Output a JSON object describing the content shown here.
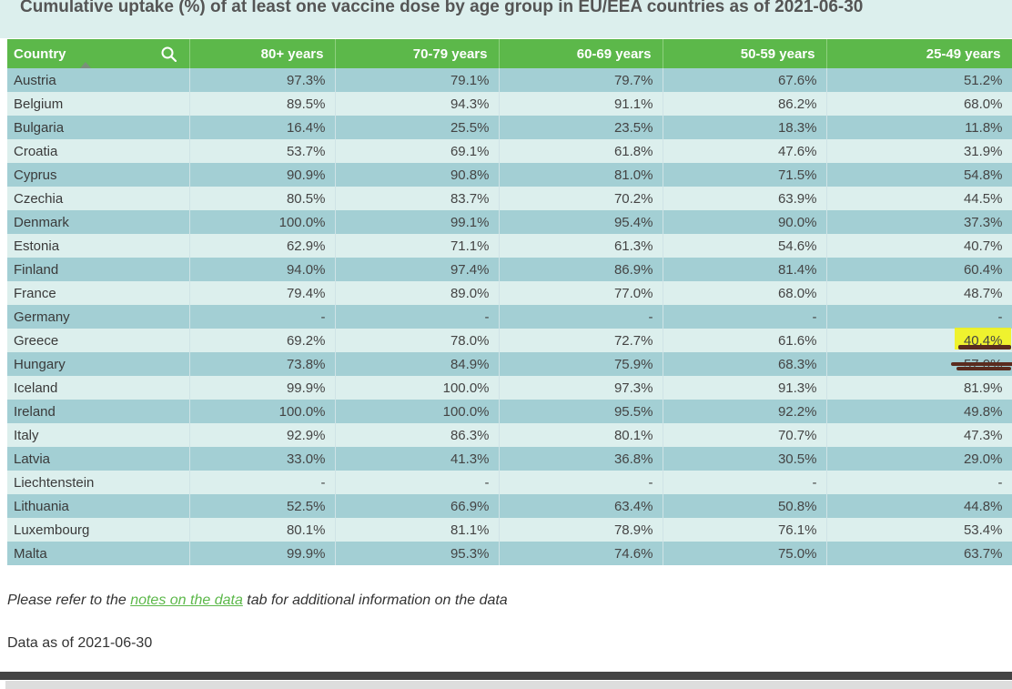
{
  "title": "Cumulative uptake (%) of at least one vaccine dose by age group in EU/EEA countries as of 2021-06-30",
  "columns": [
    "Country",
    "80+ years",
    "70-79 years",
    "60-69 years",
    "50-59 years",
    "25-49 years"
  ],
  "rows": [
    [
      "Austria",
      "97.3%",
      "79.1%",
      "79.7%",
      "67.6%",
      "51.2%"
    ],
    [
      "Belgium",
      "89.5%",
      "94.3%",
      "91.1%",
      "86.2%",
      "68.0%"
    ],
    [
      "Bulgaria",
      "16.4%",
      "25.5%",
      "23.5%",
      "18.3%",
      "11.8%"
    ],
    [
      "Croatia",
      "53.7%",
      "69.1%",
      "61.8%",
      "47.6%",
      "31.9%"
    ],
    [
      "Cyprus",
      "90.9%",
      "90.8%",
      "81.0%",
      "71.5%",
      "54.8%"
    ],
    [
      "Czechia",
      "80.5%",
      "83.7%",
      "70.2%",
      "63.9%",
      "44.5%"
    ],
    [
      "Denmark",
      "100.0%",
      "99.1%",
      "95.4%",
      "90.0%",
      "37.3%"
    ],
    [
      "Estonia",
      "62.9%",
      "71.1%",
      "61.3%",
      "54.6%",
      "40.7%"
    ],
    [
      "Finland",
      "94.0%",
      "97.4%",
      "86.9%",
      "81.4%",
      "60.4%"
    ],
    [
      "France",
      "79.4%",
      "89.0%",
      "77.0%",
      "68.0%",
      "48.7%"
    ],
    [
      "Germany",
      "-",
      "-",
      "-",
      "-",
      "-"
    ],
    [
      "Greece",
      "69.2%",
      "78.0%",
      "72.7%",
      "61.6%",
      "40.4%"
    ],
    [
      "Hungary",
      "73.8%",
      "84.9%",
      "75.9%",
      "68.3%",
      "57.0%"
    ],
    [
      "Iceland",
      "99.9%",
      "100.0%",
      "97.3%",
      "91.3%",
      "81.9%"
    ],
    [
      "Ireland",
      "100.0%",
      "100.0%",
      "95.5%",
      "92.2%",
      "49.8%"
    ],
    [
      "Italy",
      "92.9%",
      "86.3%",
      "80.1%",
      "70.7%",
      "47.3%"
    ],
    [
      "Latvia",
      "33.0%",
      "41.3%",
      "36.8%",
      "30.5%",
      "29.0%"
    ],
    [
      "Liechtenstein",
      "-",
      "-",
      "-",
      "-",
      "-"
    ],
    [
      "Lithuania",
      "52.5%",
      "66.9%",
      "63.4%",
      "50.8%",
      "44.8%"
    ],
    [
      "Luxembourg",
      "80.1%",
      "81.1%",
      "78.9%",
      "76.1%",
      "53.4%"
    ],
    [
      "Malta",
      "99.9%",
      "95.3%",
      "74.6%",
      "75.0%",
      "63.7%"
    ]
  ],
  "note": {
    "prefix": "Please refer to the ",
    "link": "notes on the data",
    "suffix": " tab for additional information on the data"
  },
  "as_of": "Data as of 2021-06-30",
  "icons": {
    "search": "search-icon",
    "sort": "sort-asc-icon"
  },
  "colors": {
    "header_bg": "#5cb84a",
    "row_dark": "#a3cfd4",
    "row_light": "#dcefed",
    "link": "#5cb84a"
  }
}
